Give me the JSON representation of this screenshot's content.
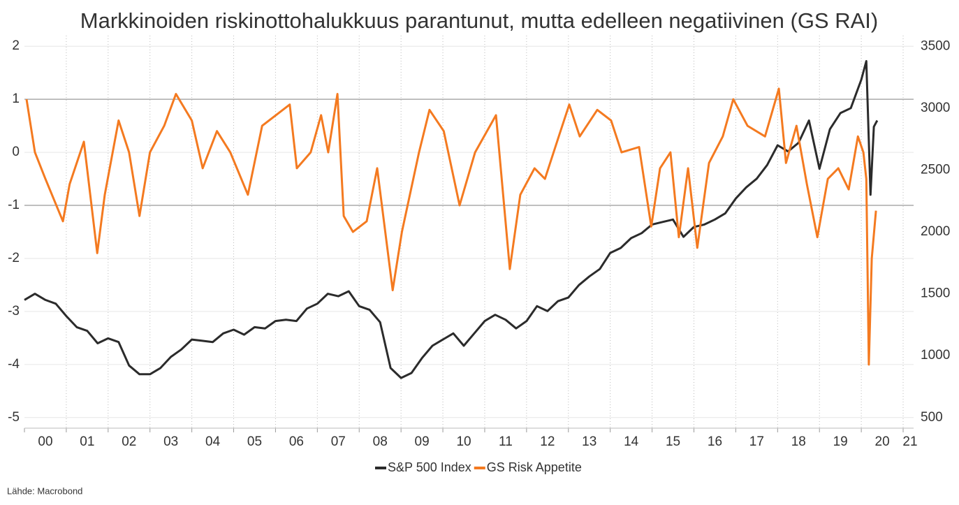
{
  "chart_data": {
    "type": "line",
    "title": "Markkinoiden riskinottohalukkuus parantunut, mutta edelleen negatiivinen (GS RAI)",
    "source": "Lähde: Macrobond",
    "xlim": [
      2000,
      2021.25
    ],
    "xticks": [
      {
        "value": 2000,
        "label": "00"
      },
      {
        "value": 2001,
        "label": "01"
      },
      {
        "value": 2002,
        "label": "02"
      },
      {
        "value": 2003,
        "label": "03"
      },
      {
        "value": 2004,
        "label": "04"
      },
      {
        "value": 2005,
        "label": "05"
      },
      {
        "value": 2006,
        "label": "06"
      },
      {
        "value": 2007,
        "label": "07"
      },
      {
        "value": 2008,
        "label": "08"
      },
      {
        "value": 2009,
        "label": "09"
      },
      {
        "value": 2010,
        "label": "10"
      },
      {
        "value": 2011,
        "label": "11"
      },
      {
        "value": 2012,
        "label": "12"
      },
      {
        "value": 2013,
        "label": "13"
      },
      {
        "value": 2014,
        "label": "14"
      },
      {
        "value": 2015,
        "label": "15"
      },
      {
        "value": 2016,
        "label": "16"
      },
      {
        "value": 2017,
        "label": "17"
      },
      {
        "value": 2018,
        "label": "18"
      },
      {
        "value": 2019,
        "label": "19"
      },
      {
        "value": 2020,
        "label": "20"
      },
      {
        "value": 2021,
        "label": "21"
      }
    ],
    "ylim": [
      -5.2,
      2.2
    ],
    "yticks": [
      2,
      1,
      0,
      -1,
      -2,
      -3,
      -4,
      -5
    ],
    "y2lim": [
      414,
      3586
    ],
    "y2ticks": [
      3500,
      3000,
      2500,
      2000,
      1500,
      1000,
      500
    ],
    "reference_lines": [
      1,
      -1
    ],
    "grid": true,
    "legend": "bottom",
    "series": [
      {
        "name": "S&P 500 Index",
        "color": "#2b2b2b",
        "axis": "y2",
        "x": [
          2000,
          2000.25,
          2000.5,
          2000.75,
          2001,
          2001.25,
          2001.5,
          2001.75,
          2002,
          2002.25,
          2002.5,
          2002.75,
          2003,
          2003.25,
          2003.5,
          2003.75,
          2004,
          2004.25,
          2004.5,
          2004.75,
          2005,
          2005.25,
          2005.5,
          2005.75,
          2006,
          2006.25,
          2006.5,
          2006.75,
          2007,
          2007.25,
          2007.5,
          2007.75,
          2008,
          2008.25,
          2008.5,
          2008.75,
          2009,
          2009.25,
          2009.5,
          2009.75,
          2010,
          2010.25,
          2010.5,
          2010.75,
          2011,
          2011.25,
          2011.5,
          2011.75,
          2012,
          2012.25,
          2012.5,
          2012.75,
          2013,
          2013.25,
          2013.5,
          2013.75,
          2014,
          2014.25,
          2014.5,
          2014.75,
          2015,
          2015.25,
          2015.5,
          2015.75,
          2016,
          2016.25,
          2016.5,
          2016.75,
          2017,
          2017.25,
          2017.5,
          2017.75,
          2018,
          2018.25,
          2018.5,
          2018.75,
          2019,
          2019.25,
          2019.5,
          2019.75,
          2020,
          2020.12,
          2020.22,
          2020.3,
          2020.38
        ],
        "values": [
          1450,
          1500,
          1450,
          1420,
          1320,
          1230,
          1200,
          1100,
          1140,
          1110,
          920,
          850,
          850,
          900,
          990,
          1050,
          1130,
          1120,
          1110,
          1180,
          1210,
          1170,
          1230,
          1220,
          1280,
          1290,
          1280,
          1380,
          1420,
          1500,
          1480,
          1520,
          1400,
          1370,
          1270,
          900,
          820,
          860,
          980,
          1080,
          1130,
          1180,
          1080,
          1180,
          1280,
          1330,
          1290,
          1220,
          1280,
          1400,
          1360,
          1440,
          1470,
          1570,
          1640,
          1700,
          1830,
          1870,
          1950,
          1990,
          2060,
          2080,
          2100,
          1960,
          2040,
          2060,
          2100,
          2150,
          2270,
          2360,
          2430,
          2540,
          2700,
          2650,
          2720,
          2900,
          2510,
          2830,
          2960,
          3000,
          3230,
          3380,
          2300,
          2850,
          2900
        ]
      },
      {
        "name": "GS Risk Appetite",
        "color": "#f47a20",
        "axis": "y",
        "x": [
          2000.05,
          2000.25,
          2000.5,
          2000.92,
          2001.08,
          2001.42,
          2001.74,
          2001.92,
          2002.25,
          2002.5,
          2002.75,
          2003,
          2003.34,
          2003.62,
          2004,
          2004.26,
          2004.6,
          2004.92,
          2005.34,
          2005.68,
          2006.01,
          2006.34,
          2006.51,
          2006.84,
          2007.09,
          2007.26,
          2007.48,
          2007.63,
          2007.85,
          2008.18,
          2008.43,
          2008.8,
          2009.02,
          2009.43,
          2009.68,
          2010.02,
          2010.4,
          2010.77,
          2011.27,
          2011.6,
          2011.85,
          2012.19,
          2012.44,
          2012.77,
          2013.02,
          2013.27,
          2013.69,
          2014.02,
          2014.27,
          2014.69,
          2014.98,
          2015.19,
          2015.44,
          2015.64,
          2015.86,
          2016.08,
          2016.36,
          2016.69,
          2016.94,
          2017.28,
          2017.7,
          2018.03,
          2018.2,
          2018.45,
          2018.7,
          2018.95,
          2019.2,
          2019.45,
          2019.7,
          2019.92,
          2020.05,
          2020.12,
          2020.18,
          2020.25,
          2020.35
        ],
        "values": [
          1.0,
          0.0,
          -0.5,
          -1.3,
          -0.6,
          0.2,
          -1.9,
          -0.8,
          0.6,
          0.0,
          -1.2,
          0.0,
          0.5,
          1.1,
          0.6,
          -0.3,
          0.4,
          0.0,
          -0.8,
          0.5,
          0.7,
          0.9,
          -0.3,
          0.0,
          0.7,
          0.0,
          1.1,
          -1.2,
          -1.5,
          -1.3,
          -0.3,
          -2.6,
          -1.5,
          0.0,
          0.8,
          0.4,
          -1.0,
          0.0,
          0.7,
          -2.2,
          -0.8,
          -0.3,
          -0.5,
          0.3,
          0.9,
          0.3,
          0.8,
          0.6,
          0.0,
          0.1,
          -1.4,
          -0.3,
          0.0,
          -1.6,
          -0.3,
          -1.8,
          -0.2,
          0.3,
          1.0,
          0.5,
          0.3,
          1.2,
          -0.2,
          0.5,
          -0.6,
          -1.6,
          -0.5,
          -0.3,
          -0.7,
          0.3,
          0.0,
          -0.5,
          -4.0,
          -2.0,
          -1.1
        ]
      }
    ]
  }
}
